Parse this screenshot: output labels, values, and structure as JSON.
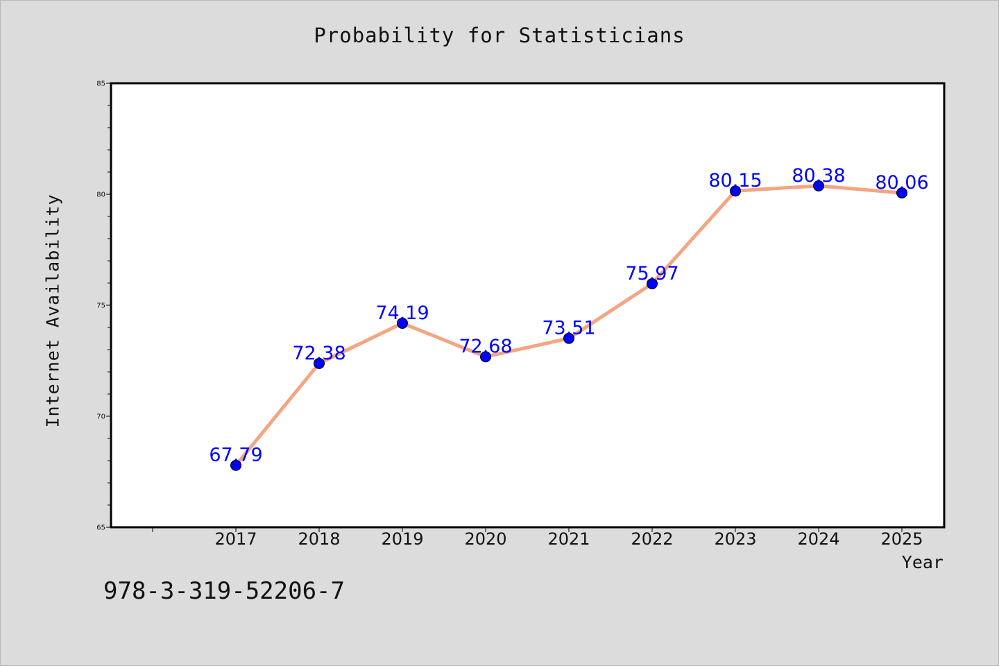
{
  "chart_data": {
    "type": "line",
    "title": "Probability for Statisticians",
    "xlabel": "Year",
    "ylabel": "Internet Availability",
    "categories": [
      "2017",
      "2018",
      "2019",
      "2020",
      "2021",
      "2022",
      "2023",
      "2024",
      "2025"
    ],
    "series": [
      {
        "values": [
          67.79,
          72.38,
          74.19,
          72.68,
          73.51,
          75.97,
          80.15,
          80.38,
          80.06
        ]
      }
    ],
    "data_labels": [
      "67.79",
      "72.38",
      "74.19",
      "72.68",
      "73.51",
      "75.97",
      "80.15",
      "80.38",
      "80.06"
    ],
    "ylim": [
      65,
      85
    ],
    "yticks": [
      "65",
      "70",
      "75",
      "80",
      "85"
    ],
    "grid": false,
    "colors": {
      "line": "#f4a582",
      "marker": "#0000ff",
      "data_label": "#0000ff",
      "background": "#dcdcdc",
      "plot_area": "#ffffff"
    }
  },
  "footer": {
    "code": "978-3-319-52206-7"
  }
}
